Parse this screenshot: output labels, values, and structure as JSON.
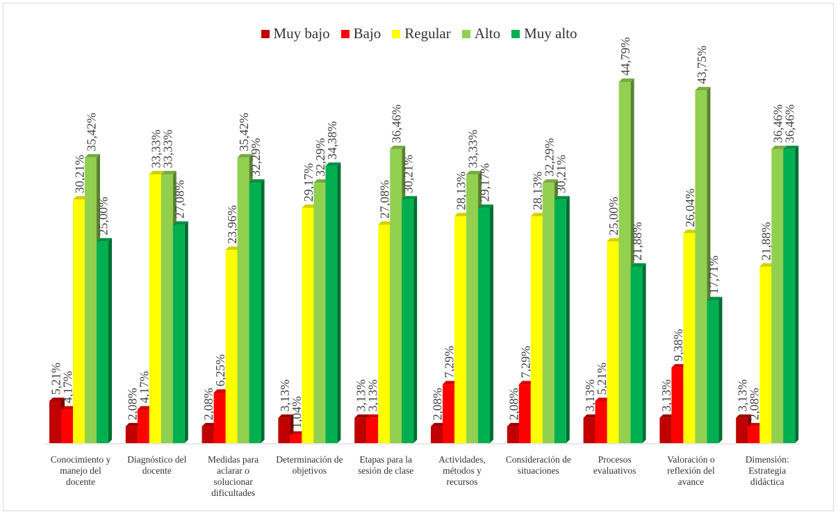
{
  "chart_data": {
    "type": "bar",
    "title": "",
    "xlabel": "",
    "ylabel": "",
    "ylim": [
      0,
      45
    ],
    "grid": false,
    "legend_position": "top",
    "categories": [
      "Conocimiento y manejo del docente",
      "Diagnóstico del docente",
      "Medidas para aclarar o solucionar dificultades",
      "Determinación de objetivos",
      "Etapas para la sesión de clase",
      "Actividades, métodos y recursos",
      "Consideración de situaciones",
      "Procesos evaluativos",
      "Valoración o reflexión del avance",
      "Dimensión: Estrategia didáctica"
    ],
    "series": [
      {
        "name": "Muy bajo",
        "color": "#c00000",
        "values": [
          5.21,
          2.08,
          2.08,
          3.13,
          3.13,
          2.08,
          2.08,
          3.13,
          3.13,
          3.13
        ],
        "labels": [
          "5,21%",
          "2,08%",
          "2,08%",
          "3,13%",
          "3,13%",
          "2,08%",
          "2,08%",
          "3,13%",
          "3,13%",
          "3,13%"
        ]
      },
      {
        "name": "Bajo",
        "color": "#ff0000",
        "values": [
          4.17,
          4.17,
          6.25,
          1.04,
          3.13,
          7.29,
          7.29,
          5.21,
          9.38,
          2.08
        ],
        "labels": [
          "4,17%",
          "4,17%",
          "6,25%",
          "1,04%",
          "3,13%",
          "7,29%",
          "7,29%",
          "5,21%",
          "9,38%",
          "2,08%"
        ]
      },
      {
        "name": "Regular",
        "color": "#ffff00",
        "values": [
          30.21,
          33.33,
          23.96,
          29.17,
          27.08,
          28.13,
          28.13,
          25.0,
          26.04,
          21.88
        ],
        "labels": [
          "30,21%",
          "33,33%",
          "23,96%",
          "29,17%",
          "27,08%",
          "28,13%",
          "28,13%",
          "25,00%",
          "26,04%",
          "21,88%"
        ]
      },
      {
        "name": "Alto",
        "color": "#92d050",
        "values": [
          35.42,
          33.33,
          35.42,
          32.29,
          36.46,
          33.33,
          32.29,
          44.79,
          43.75,
          36.46
        ],
        "labels": [
          "35,42%",
          "33,33%",
          "35,42%",
          "32,29%",
          "36,46%",
          "33,33%",
          "32,29%",
          "44,79%",
          "43,75%",
          "36,46%"
        ]
      },
      {
        "name": "Muy alto",
        "color": "#00b050",
        "values": [
          25.0,
          27.08,
          32.29,
          34.38,
          30.21,
          29.17,
          30.21,
          21.88,
          17.71,
          36.46
        ],
        "labels": [
          "25,00%",
          "27,08%",
          "32,29%",
          "34,38%",
          "30,21%",
          "29,17%",
          "30,21%",
          "21,88%",
          "17,71%",
          "36,46%"
        ]
      }
    ]
  }
}
